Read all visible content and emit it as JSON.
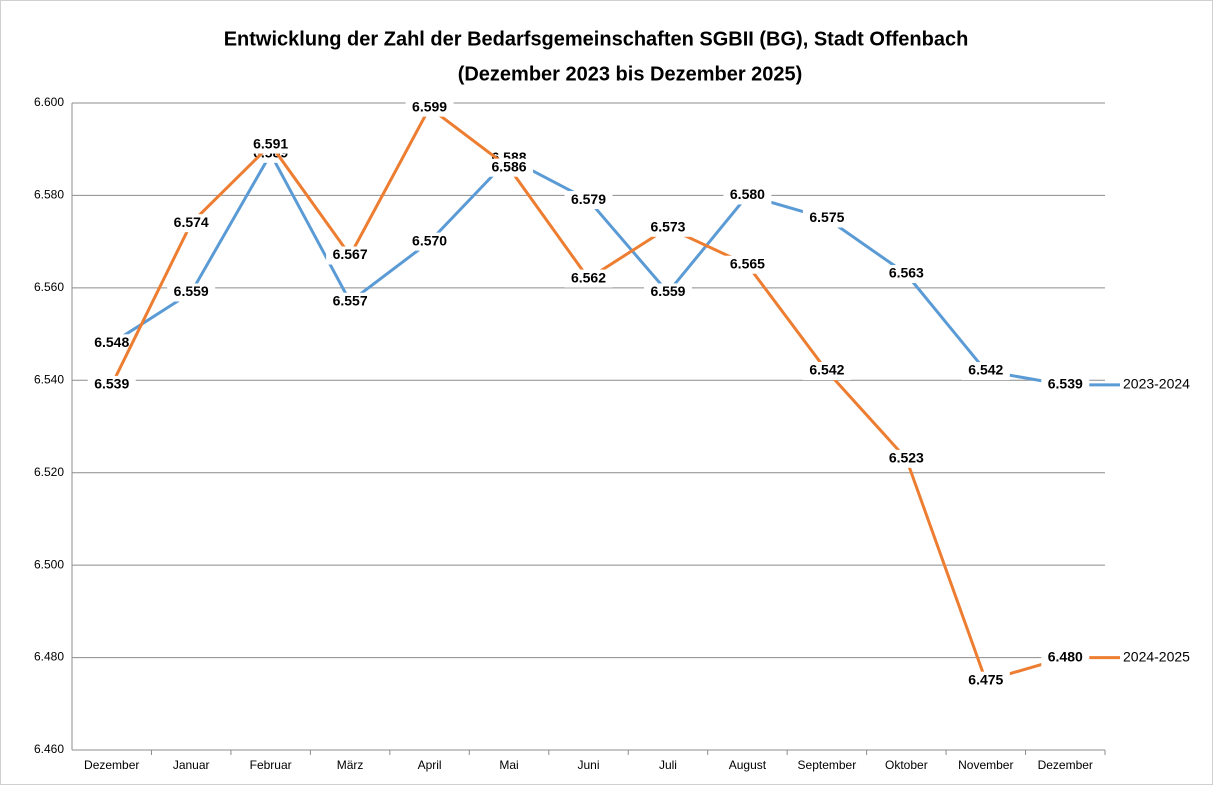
{
  "chart_data": {
    "type": "line",
    "title": "Entwicklung der Zahl der Bedarfsgemeinschaften SGBII (BG), Stadt Offenbach",
    "subtitle": "(Dezember 2023 bis Dezember 2025)",
    "categories": [
      "Dezember",
      "Januar",
      "Februar",
      "März",
      "April",
      "Mai",
      "Juni",
      "Juli",
      "August",
      "September",
      "Oktober",
      "November",
      "Dezember"
    ],
    "series": [
      {
        "name": "2023-2024",
        "color": "#5b9bd5",
        "values": [
          6548,
          6559,
          6589,
          6557,
          6570,
          6588,
          6579,
          6559,
          6580,
          6575,
          6563,
          6542,
          6539
        ],
        "value_labels": [
          "6.548",
          "6.559",
          "6.589",
          "6.557",
          "6.570",
          "6.588",
          "6.579",
          "6.559",
          "6.580",
          "6.575",
          "6.563",
          "6.542",
          "6.539"
        ]
      },
      {
        "name": "2024-2025",
        "color": "#ed7d31",
        "values": [
          6539,
          6574,
          6591,
          6567,
          6599,
          6586,
          6562,
          6573,
          6565,
          6542,
          6523,
          6475,
          6480
        ],
        "value_labels": [
          "6.539",
          "6.574",
          "6.591",
          "6.567",
          "6.599",
          "6.586",
          "6.562",
          "6.573",
          "6.565",
          "6.542",
          "6.523",
          "6.475",
          "6.480"
        ]
      }
    ],
    "ylim": [
      6460,
      6600
    ],
    "yticks": [
      {
        "value": 6460,
        "label": "6.460"
      },
      {
        "value": 6480,
        "label": "6.480"
      },
      {
        "value": 6500,
        "label": "6.500"
      },
      {
        "value": 6520,
        "label": "6.520"
      },
      {
        "value": 6540,
        "label": "6.540"
      },
      {
        "value": 6560,
        "label": "6.560"
      },
      {
        "value": 6580,
        "label": "6.580"
      },
      {
        "value": 6600,
        "label": "6.600"
      }
    ],
    "grid": true
  }
}
